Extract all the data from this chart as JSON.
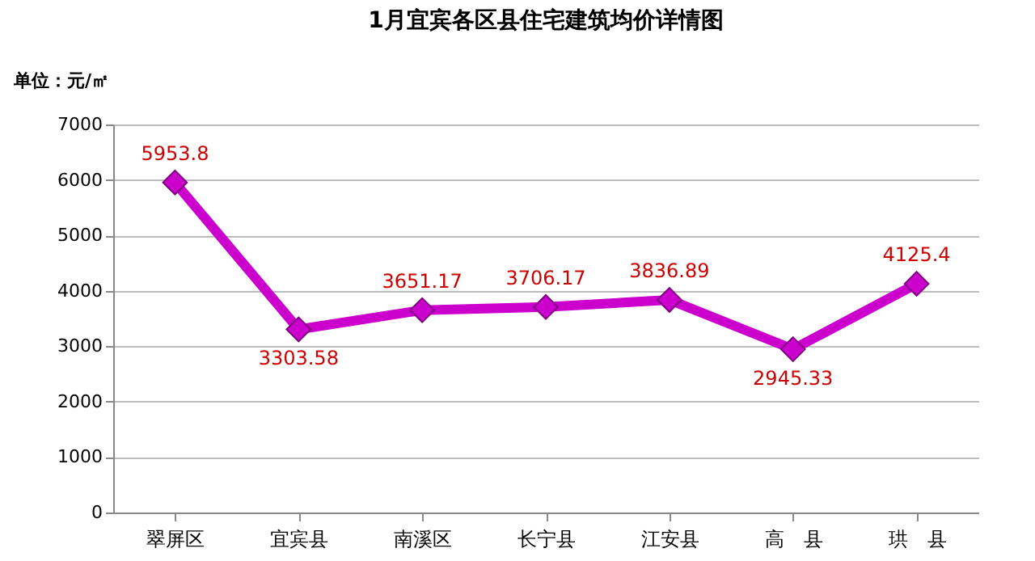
{
  "chart_data": {
    "type": "line",
    "title": "1月宜宾各区县住宅建筑均价详情图",
    "ylabel": "单位：元/㎡",
    "categories": [
      "翠屏区",
      "宜宾县",
      "南溪区",
      "长宁县",
      "江安县",
      "高　县",
      "珙　县"
    ],
    "series": [
      {
        "color": "#cc00cc",
        "values": [
          5953.8,
          3303.58,
          3651.17,
          3706.17,
          3836.89,
          2945.33,
          4125.4
        ]
      }
    ],
    "ylim": [
      0,
      7000
    ],
    "yticks": [
      0,
      1000,
      2000,
      3000,
      4000,
      5000,
      6000,
      7000
    ],
    "grid": "y",
    "marker": "diamond",
    "data_labels": true,
    "legend": false
  }
}
